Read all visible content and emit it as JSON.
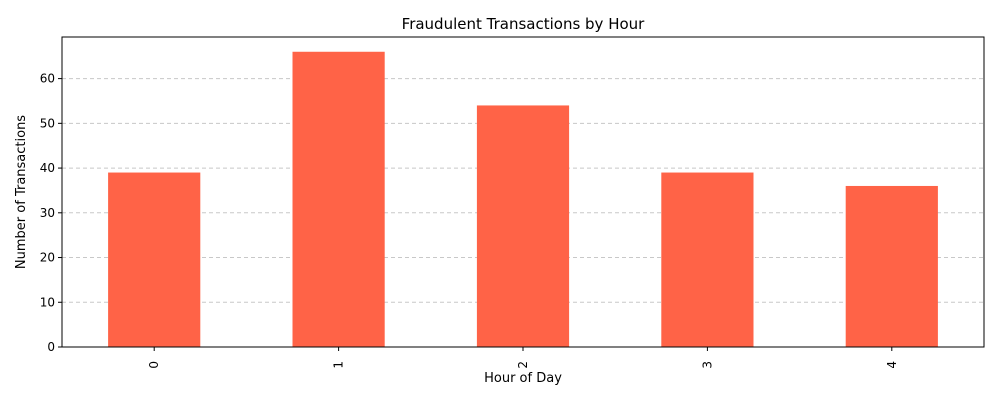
{
  "chart_data": {
    "type": "bar",
    "title": "Fraudulent Transactions by Hour",
    "xlabel": "Hour of Day",
    "ylabel": "Number of Transactions",
    "categories": [
      "0",
      "1",
      "2",
      "3",
      "4"
    ],
    "values": [
      39,
      66,
      54,
      39,
      36
    ],
    "ylim": [
      0,
      69.3
    ],
    "yticks": [
      0,
      10,
      20,
      30,
      40,
      50,
      60
    ],
    "grid": "y-dashed",
    "bar_color": "#ff6347",
    "grid_color": "#c8c8c8"
  }
}
